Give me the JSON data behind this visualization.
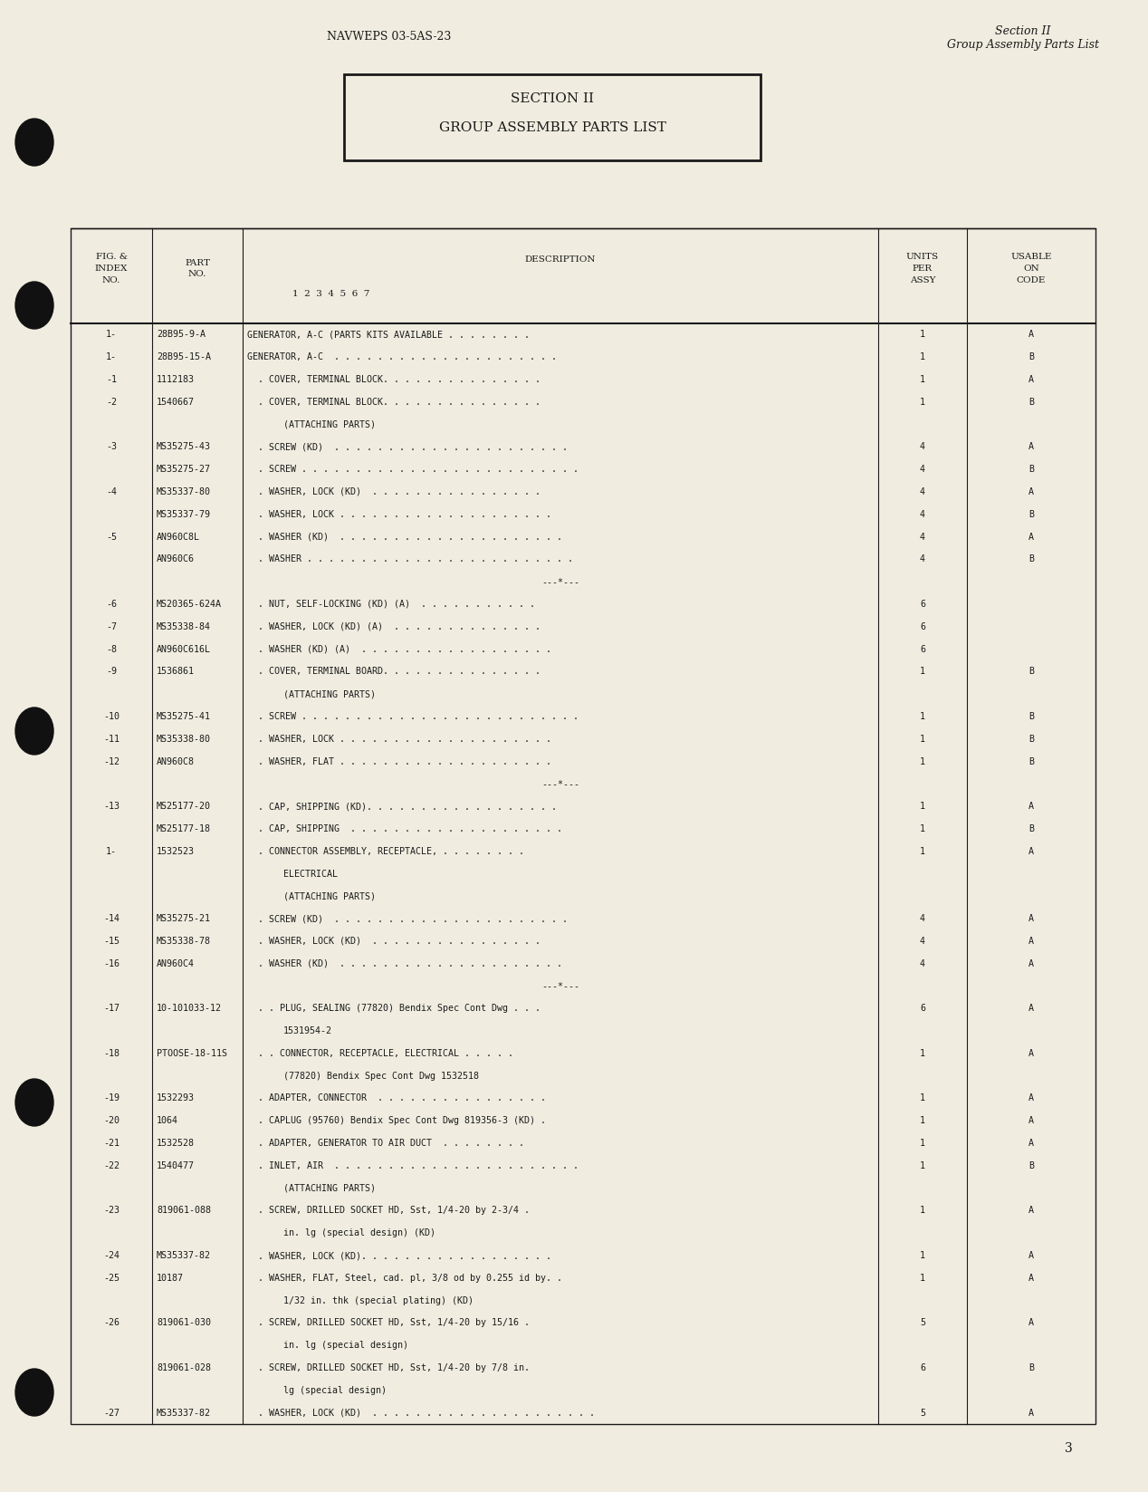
{
  "bg_color": "#f0ede0",
  "header_left": "NAVWEPS 03-5AS-23",
  "header_right_line1": "Section II",
  "header_right_line2": "Group Assembly Parts List",
  "section_box_line1": "SECTION II",
  "section_box_line2": "GROUP ASSEMBLY PARTS LIST",
  "footer_page": "3",
  "rows": [
    {
      "fig": "1-",
      "part": "28B95-9-A",
      "desc": "GENERATOR, A-C (PARTS KITS AVAILABLE . . . . . . . .",
      "cont": "",
      "units": "1",
      "code": "A"
    },
    {
      "fig": "1-",
      "part": "28B95-15-A",
      "desc": "GENERATOR, A-C  . . . . . . . . . . . . . . . . . . . . .",
      "cont": "",
      "units": "1",
      "code": "B"
    },
    {
      "fig": "-1",
      "part": "1112183",
      "desc": "  . COVER, TERMINAL BLOCK. . . . . . . . . . . . . . .",
      "cont": "",
      "units": "1",
      "code": "A"
    },
    {
      "fig": "-2",
      "part": "1540667",
      "desc": "  . COVER, TERMINAL BLOCK. . . . . . . . . . . . . . .",
      "cont": "(ATTACHING PARTS)",
      "units": "1",
      "code": "B"
    },
    {
      "fig": "-3",
      "part": "MS35275-43",
      "desc": "  . SCREW (KD)  . . . . . . . . . . . . . . . . . . . . . .",
      "cont": "",
      "units": "4",
      "code": "A"
    },
    {
      "fig": "",
      "part": "MS35275-27",
      "desc": "  . SCREW . . . . . . . . . . . . . . . . . . . . . . . . . .",
      "cont": "",
      "units": "4",
      "code": "B"
    },
    {
      "fig": "-4",
      "part": "MS35337-80",
      "desc": "  . WASHER, LOCK (KD)  . . . . . . . . . . . . . . . .",
      "cont": "",
      "units": "4",
      "code": "A"
    },
    {
      "fig": "",
      "part": "MS35337-79",
      "desc": "  . WASHER, LOCK . . . . . . . . . . . . . . . . . . . .",
      "cont": "",
      "units": "4",
      "code": "B"
    },
    {
      "fig": "-5",
      "part": "AN960C8L",
      "desc": "  . WASHER (KD)  . . . . . . . . . . . . . . . . . . . . .",
      "cont": "",
      "units": "4",
      "code": "A"
    },
    {
      "fig": "",
      "part": "AN960C6",
      "desc": "  . WASHER . . . . . . . . . . . . . . . . . . . . . . . . .",
      "cont": "",
      "units": "4",
      "code": "B"
    },
    {
      "fig": "",
      "part": "",
      "desc": "---*---",
      "cont": "",
      "units": "",
      "code": ""
    },
    {
      "fig": "-6",
      "part": "MS20365-624A",
      "desc": "  . NUT, SELF-LOCKING (KD) (A)  . . . . . . . . . . .",
      "cont": "",
      "units": "6",
      "code": ""
    },
    {
      "fig": "-7",
      "part": "MS35338-84",
      "desc": "  . WASHER, LOCK (KD) (A)  . . . . . . . . . . . . . .",
      "cont": "",
      "units": "6",
      "code": ""
    },
    {
      "fig": "-8",
      "part": "AN960C616L",
      "desc": "  . WASHER (KD) (A)  . . . . . . . . . . . . . . . . . .",
      "cont": "",
      "units": "6",
      "code": ""
    },
    {
      "fig": "-9",
      "part": "1536861",
      "desc": "  . COVER, TERMINAL BOARD. . . . . . . . . . . . . . .",
      "cont": "(ATTACHING PARTS)",
      "units": "1",
      "code": "B"
    },
    {
      "fig": "-10",
      "part": "MS35275-41",
      "desc": "  . SCREW . . . . . . . . . . . . . . . . . . . . . . . . . .",
      "cont": "",
      "units": "1",
      "code": "B"
    },
    {
      "fig": "-11",
      "part": "MS35338-80",
      "desc": "  . WASHER, LOCK . . . . . . . . . . . . . . . . . . . .",
      "cont": "",
      "units": "1",
      "code": "B"
    },
    {
      "fig": "-12",
      "part": "AN960C8",
      "desc": "  . WASHER, FLAT . . . . . . . . . . . . . . . . . . . .",
      "cont": "",
      "units": "1",
      "code": "B"
    },
    {
      "fig": "",
      "part": "",
      "desc": "---*---",
      "cont": "",
      "units": "",
      "code": ""
    },
    {
      "fig": "-13",
      "part": "MS25177-20",
      "desc": "  . CAP, SHIPPING (KD). . . . . . . . . . . . . . . . . .",
      "cont": "",
      "units": "1",
      "code": "A"
    },
    {
      "fig": "",
      "part": "MS25177-18",
      "desc": "  . CAP, SHIPPING  . . . . . . . . . . . . . . . . . . . .",
      "cont": "",
      "units": "1",
      "code": "B"
    },
    {
      "fig": "1-",
      "part": "1532523",
      "desc": "  . CONNECTOR ASSEMBLY, RECEPTACLE, . . . . . . . .",
      "cont": "ELECTRICAL\n(ATTACHING PARTS)",
      "units": "1",
      "code": "A"
    },
    {
      "fig": "-14",
      "part": "MS35275-21",
      "desc": "  . SCREW (KD)  . . . . . . . . . . . . . . . . . . . . . .",
      "cont": "",
      "units": "4",
      "code": "A"
    },
    {
      "fig": "-15",
      "part": "MS35338-78",
      "desc": "  . WASHER, LOCK (KD)  . . . . . . . . . . . . . . . .",
      "cont": "",
      "units": "4",
      "code": "A"
    },
    {
      "fig": "-16",
      "part": "AN960C4",
      "desc": "  . WASHER (KD)  . . . . . . . . . . . . . . . . . . . . .",
      "cont": "",
      "units": "4",
      "code": "A"
    },
    {
      "fig": "",
      "part": "",
      "desc": "---*---",
      "cont": "",
      "units": "",
      "code": ""
    },
    {
      "fig": "-17",
      "part": "10-101033-12",
      "desc": "  . . PLUG, SEALING (77820) Bendix Spec Cont Dwg . . .",
      "cont": "1531954-2",
      "units": "6",
      "code": "A"
    },
    {
      "fig": "-18",
      "part": "PTOOSE-18-11S",
      "desc": "  . . CONNECTOR, RECEPTACLE, ELECTRICAL . . . . .",
      "cont": "(77820) Bendix Spec Cont Dwg 1532518",
      "units": "1",
      "code": "A"
    },
    {
      "fig": "-19",
      "part": "1532293",
      "desc": "  . ADAPTER, CONNECTOR  . . . . . . . . . . . . . . . .",
      "cont": "",
      "units": "1",
      "code": "A"
    },
    {
      "fig": "-20",
      "part": "1064",
      "desc": "  . CAPLUG (95760) Bendix Spec Cont Dwg 819356-3 (KD) .",
      "cont": "",
      "units": "1",
      "code": "A"
    },
    {
      "fig": "-21",
      "part": "1532528",
      "desc": "  . ADAPTER, GENERATOR TO AIR DUCT  . . . . . . . .",
      "cont": "",
      "units": "1",
      "code": "A"
    },
    {
      "fig": "-22",
      "part": "1540477",
      "desc": "  . INLET, AIR  . . . . . . . . . . . . . . . . . . . . . . .",
      "cont": "(ATTACHING PARTS)",
      "units": "1",
      "code": "B"
    },
    {
      "fig": "-23",
      "part": "819061-088",
      "desc": "  . SCREW, DRILLED SOCKET HD, Sst, 1/4-20 by 2-3/4 .",
      "cont": "in. lg (special design) (KD)",
      "units": "1",
      "code": "A"
    },
    {
      "fig": "-24",
      "part": "MS35337-82",
      "desc": "  . WASHER, LOCK (KD). . . . . . . . . . . . . . . . . .",
      "cont": "",
      "units": "1",
      "code": "A"
    },
    {
      "fig": "-25",
      "part": "10187",
      "desc": "  . WASHER, FLAT, Steel, cad. pl, 3/8 od by 0.255 id by. .",
      "cont": "1/32 in. thk (special plating) (KD)",
      "units": "1",
      "code": "A"
    },
    {
      "fig": "-26",
      "part": "819061-030",
      "desc": "  . SCREW, DRILLED SOCKET HD, Sst, 1/4-20 by 15/16 .",
      "cont": "in. lg (special design)",
      "units": "5",
      "code": "A"
    },
    {
      "fig": "",
      "part": "819061-028",
      "desc": "  . SCREW, DRILLED SOCKET HD, Sst, 1/4-20 by 7/8 in.",
      "cont": "lg (special design)",
      "units": "6",
      "code": "B"
    },
    {
      "fig": "-27",
      "part": "MS35337-82",
      "desc": "  . WASHER, LOCK (KD)  . . . . . . . . . . . . . . . . . . . . .",
      "cont": "",
      "units": "5",
      "code": "A"
    }
  ]
}
